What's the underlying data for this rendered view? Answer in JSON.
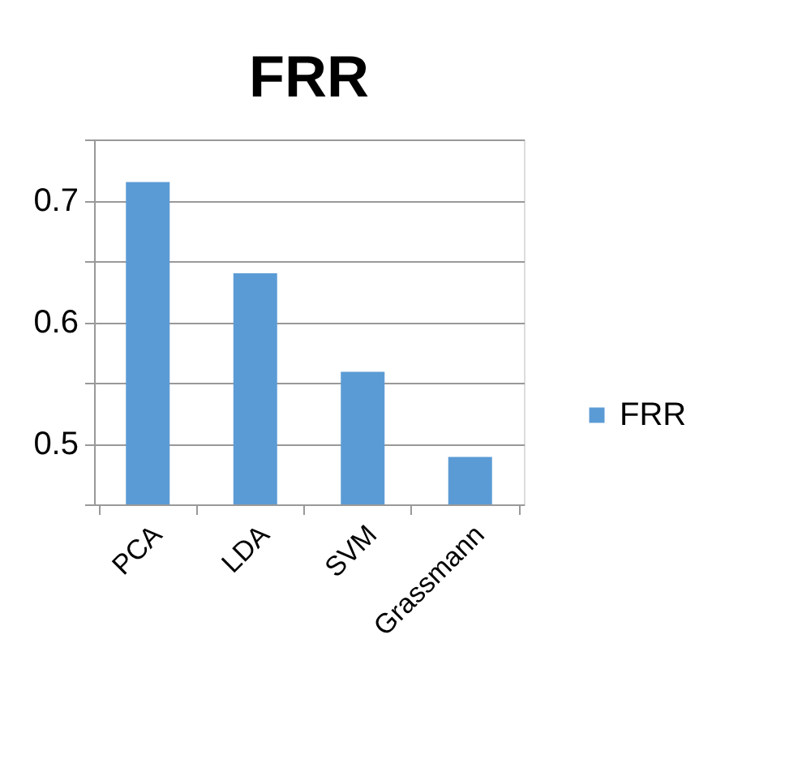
{
  "chart_data": {
    "type": "bar",
    "title": "FRR",
    "categories": [
      "PCA",
      "LDA",
      "SVM",
      "Grassmann"
    ],
    "series": [
      {
        "name": "FRR",
        "color": "#5b9bd5",
        "values": [
          0.715,
          0.64,
          0.559,
          0.489
        ]
      }
    ],
    "ylim": [
      0.45,
      0.75
    ],
    "yticks": [
      {
        "value": 0.45,
        "label": null
      },
      0.5,
      {
        "value": 0.55,
        "label": null
      },
      0.6,
      {
        "value": 0.65,
        "label": null
      },
      0.7,
      {
        "value": 0.75,
        "label": null
      }
    ],
    "grid": "y",
    "legend": "right"
  }
}
